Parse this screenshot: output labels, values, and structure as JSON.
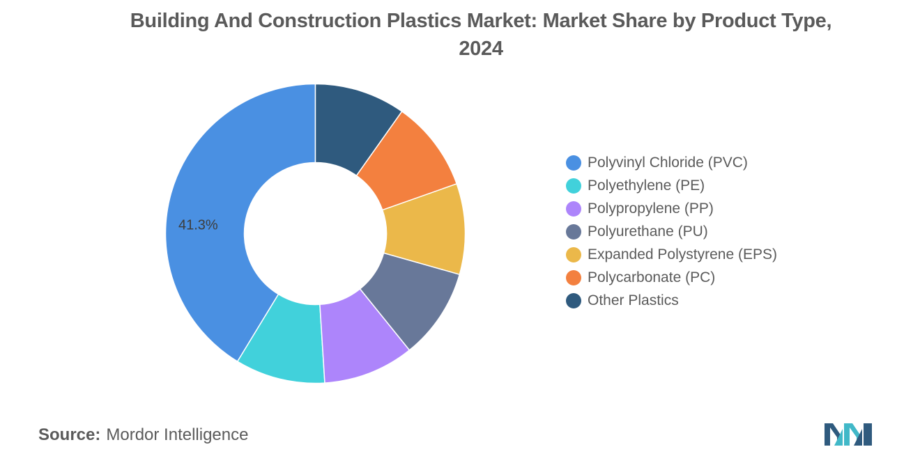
{
  "title_line1": "Building And Construction Plastics Market: Market Share by Product Type,",
  "title_line2": "2024",
  "source_label": "Source:",
  "source_value": "Mordor Intelligence",
  "chart_data": {
    "type": "pie",
    "donut": true,
    "categories": [
      "Polyvinyl Chloride (PVC)",
      "Polyethylene (PE)",
      "Polypropylene (PP)",
      "Polyurethane (PU)",
      "Expanded Polystyrene (EPS)",
      "Polycarbonate (PC)",
      "Other Plastics"
    ],
    "values": [
      41.3,
      9.7,
      9.8,
      9.8,
      9.8,
      9.8,
      9.8
    ],
    "colors": [
      "#4a90e2",
      "#41d1db",
      "#ad85fb",
      "#687899",
      "#ebb84a",
      "#f3803f",
      "#2f5a7e"
    ],
    "data_labels": [
      "41.3%",
      "",
      "",
      "",
      "",
      "",
      ""
    ],
    "legend_position": "right",
    "title": "Building And Construction Plastics Market: Market Share by Product Type, 2024"
  }
}
